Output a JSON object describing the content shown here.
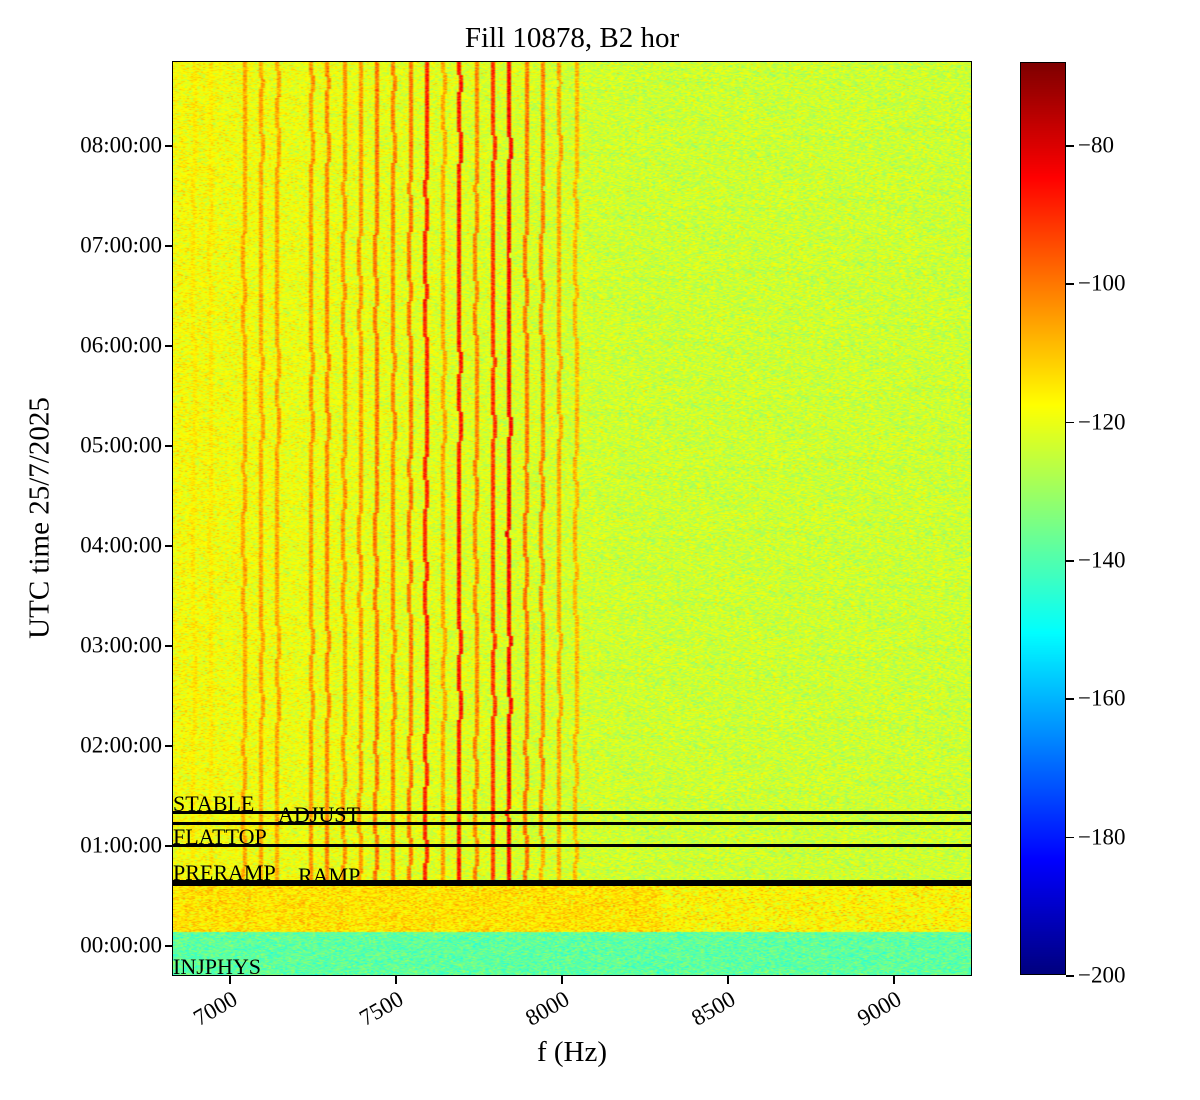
{
  "chart_data": {
    "type": "heatmap",
    "title": "Fill 10878, B2 hor",
    "xlabel": "f (Hz)",
    "ylabel": "UTC time 25/7/2025",
    "xlim": [
      6830,
      9235
    ],
    "ylim_hours": [
      -0.3,
      8.83
    ],
    "xticks": [
      7000,
      7500,
      8000,
      8500,
      9000
    ],
    "xtick_labels": [
      "7000",
      "7500",
      "8000",
      "8500",
      "9000"
    ],
    "yticks_hours": [
      0,
      1,
      2,
      3,
      4,
      5,
      6,
      7,
      8
    ],
    "ytick_labels": [
      "00:00:00",
      "01:00:00",
      "02:00:00",
      "03:00:00",
      "04:00:00",
      "05:00:00",
      "06:00:00",
      "07:00:00",
      "08:00:00"
    ],
    "colormap": "jet",
    "colorbar": {
      "range": [
        -200,
        -68
      ],
      "ticks": [
        -80,
        -100,
        -120,
        -140,
        -160,
        -180,
        -200
      ],
      "tick_labels": [
        "−80",
        "−100",
        "−120",
        "−140",
        "−160",
        "−180",
        "−200"
      ]
    },
    "background_dB": -124,
    "spectral_lines": [
      {
        "f": 6890,
        "dB": -116
      },
      {
        "f": 6940,
        "dB": -116
      },
      {
        "f": 7042,
        "dB": -106
      },
      {
        "f": 7093,
        "dB": -106
      },
      {
        "f": 7142,
        "dB": -106
      },
      {
        "f": 7244,
        "dB": -104
      },
      {
        "f": 7292,
        "dB": -102
      },
      {
        "f": 7343,
        "dB": -104
      },
      {
        "f": 7392,
        "dB": -104
      },
      {
        "f": 7440,
        "dB": -100
      },
      {
        "f": 7491,
        "dB": -102
      },
      {
        "f": 7542,
        "dB": -100
      },
      {
        "f": 7590,
        "dB": -90
      },
      {
        "f": 7642,
        "dB": -106
      },
      {
        "f": 7690,
        "dB": -88
      },
      {
        "f": 7741,
        "dB": -102
      },
      {
        "f": 7792,
        "dB": -92
      },
      {
        "f": 7840,
        "dB": -86
      },
      {
        "f": 7892,
        "dB": -100
      },
      {
        "f": 7940,
        "dB": -102
      },
      {
        "f": 7991,
        "dB": -106
      },
      {
        "f": 8042,
        "dB": -108
      }
    ],
    "events": [
      {
        "label": "STABLE",
        "hours": 1.33
      },
      {
        "label": "ADJUST",
        "hours": 1.22
      },
      {
        "label": "FLATTOP",
        "hours": 1.0
      },
      {
        "label": "RAMP",
        "hours": 0.61
      },
      {
        "label": "PRERAMP",
        "hours": 0.64
      },
      {
        "label": "INJPHYS",
        "hours": -0.3
      }
    ]
  }
}
